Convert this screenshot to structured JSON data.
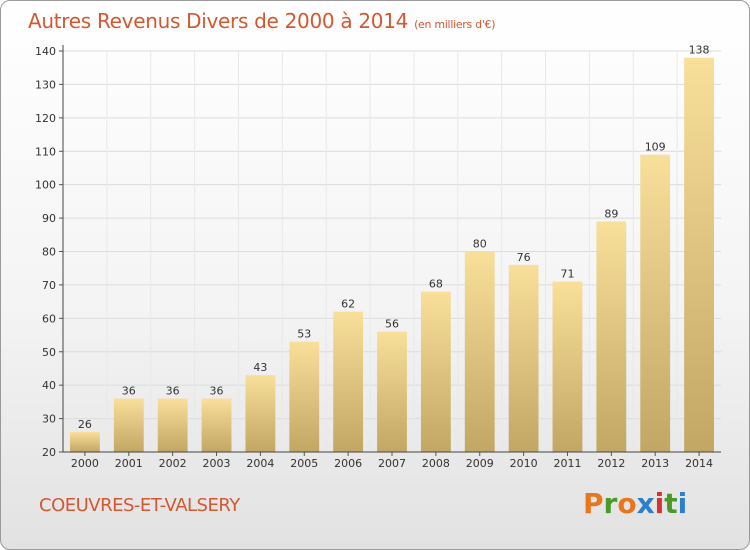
{
  "title": "Autres Revenus Divers de 2000 à 2014",
  "unit": "(en milliers d'€)",
  "town": "COEUVRES-ET-VALSERY",
  "brand": {
    "letters": [
      "P",
      "r",
      "o",
      "x",
      "i",
      "t",
      "i"
    ],
    "colors": [
      "#e8761e",
      "#4a9a2a",
      "#e8761e",
      "#2a7fcf",
      "#d4332f",
      "#4a9a2a",
      "#2a7fcf"
    ]
  },
  "colors": {
    "bar_top": "#f8df9a",
    "bar_bottom": "#c2a764",
    "title": "#d4582f"
  },
  "chart_data": {
    "type": "bar",
    "categories": [
      "2000",
      "2001",
      "2002",
      "2003",
      "2004",
      "2005",
      "2006",
      "2007",
      "2008",
      "2009",
      "2010",
      "2011",
      "2012",
      "2013",
      "2014"
    ],
    "values": [
      26,
      36,
      36,
      36,
      43,
      53,
      62,
      56,
      68,
      80,
      76,
      71,
      89,
      109,
      138
    ],
    "ylim": [
      20,
      140
    ],
    "yticks": [
      20,
      30,
      40,
      50,
      60,
      70,
      80,
      90,
      100,
      110,
      120,
      130,
      140
    ],
    "grid": true
  }
}
